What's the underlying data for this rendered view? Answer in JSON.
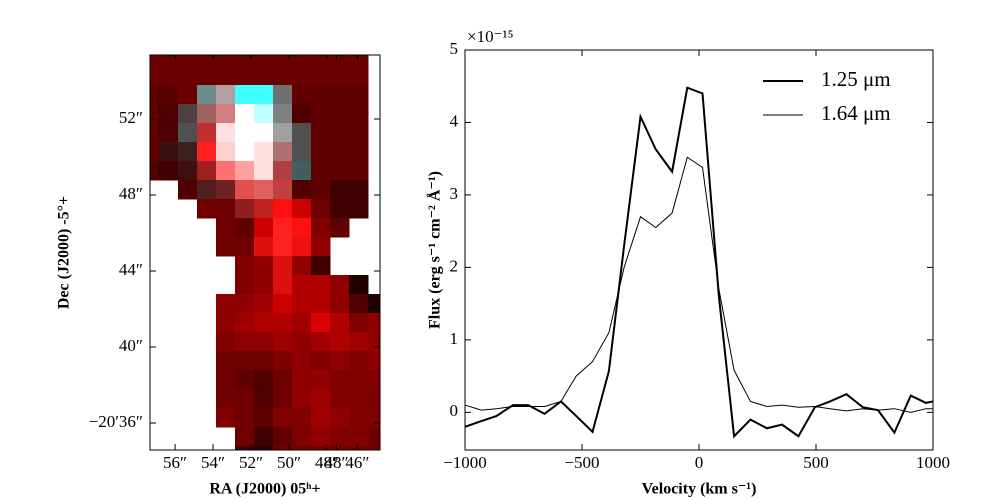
{
  "chart_data": [
    {
      "type": "image",
      "xlabel": "RA (J2000) 05ʰ+",
      "ylabel": "Dec (J2000) -5°+",
      "xlim": [
        57.32,
        45.21
      ],
      "ylim": [
        34.58,
        55.37
      ],
      "xticks": [
        {
          "value": 56,
          "label": "56″"
        },
        {
          "value": 54,
          "label": "54″"
        },
        {
          "value": 52,
          "label": "52″"
        },
        {
          "value": 50,
          "label": "50″"
        },
        {
          "value": 48,
          "label": "48″"
        },
        {
          "value": 47.5,
          "label": "48″"
        },
        {
          "value": 46.4,
          "label": "46″"
        }
      ],
      "yticks": [
        {
          "value": 36,
          "label": "−20′36″"
        },
        {
          "value": 40,
          "label": "40″"
        },
        {
          "value": 44,
          "label": "44″"
        },
        {
          "value": 48,
          "label": "48″"
        },
        {
          "value": 52,
          "label": "52″"
        }
      ],
      "pixels": [
        [
          "#6a0000",
          "#6a0000",
          "#6a0000",
          "#6a0000",
          "#6a0000",
          "#6a0000",
          "#6a0000",
          "#6a0000",
          "#6a0000",
          "#6a0000",
          "#6a0000",
          "#6a0000",
          null
        ],
        [
          "#6b0000",
          "#6b0000",
          "#6b0000",
          "#6b0000",
          "#6b0000",
          "#6b0000",
          "#6b0000",
          "#6b0000",
          "#6b0000",
          "#6b0000",
          "#6b0000",
          "#6b0000",
          null
        ],
        [
          "#5a0000",
          "#5a0000",
          "#6b0000",
          "#6f8c8c",
          "#b0a0a0",
          "#40ffff",
          "#40ffff",
          "#707070",
          "#600000",
          "#600000",
          "#600000",
          "#600000",
          null
        ],
        [
          "#600000",
          "#500000",
          "#504040",
          "#a06060",
          "#d08080",
          "#ffffff",
          "#c0ffff",
          "#808080",
          "#500000",
          "#600000",
          "#600000",
          "#600000",
          null
        ],
        [
          "#600000",
          "#500000",
          "#505050",
          "#c03030",
          "#ffe0e0",
          "#ffffff",
          "#ffffff",
          "#a0a0a0",
          "#505050",
          "#600000",
          "#600000",
          "#600000",
          null
        ],
        [
          "#600000",
          "#3a1010",
          "#3a2020",
          "#ff2020",
          "#ffd0d0",
          "#ffffff",
          "#ffe0e0",
          "#b07070",
          "#505050",
          "#600000",
          "#600000",
          "#600000",
          null
        ],
        [
          "#500000",
          "#400000",
          "#401010",
          "#a02020",
          "#ff7070",
          "#ffa0a0",
          "#ffe0e0",
          "#b04040",
          "#406060",
          "#600000",
          "#600000",
          "#600000",
          null
        ],
        [
          null,
          null,
          "#500000",
          "#502020",
          "#702020",
          "#e05050",
          "#e06060",
          "#c04040",
          "#500000",
          "#600000",
          "#400000",
          "#400000",
          null
        ],
        [
          null,
          null,
          null,
          "#700000",
          "#700000",
          "#902020",
          "#c02020",
          "#ff1010",
          "#cc0000",
          "#700000",
          "#400000",
          "#400000",
          null
        ],
        [
          null,
          null,
          null,
          null,
          "#700000",
          "#600000",
          "#cc0000",
          "#ff2020",
          "#ff1010",
          "#800000",
          "#600000",
          null,
          null
        ],
        [
          null,
          null,
          null,
          null,
          "#700000",
          "#700000",
          "#dd1010",
          "#ff2020",
          "#ee1010",
          "#900000",
          null,
          null,
          null
        ],
        [
          null,
          null,
          null,
          null,
          null,
          "#800000",
          "#900000",
          "#dd1010",
          "#900000",
          "#400000",
          null,
          null,
          null
        ],
        [
          null,
          null,
          null,
          null,
          null,
          "#800000",
          "#900000",
          "#dd1010",
          "#b00000",
          "#b00000",
          "#900000",
          "#200000",
          null
        ],
        [
          null,
          null,
          null,
          null,
          "#900000",
          "#900000",
          "#a00000",
          "#cc0000",
          "#b00000",
          "#b00000",
          "#900000",
          "#500000",
          "#200000"
        ],
        [
          null,
          null,
          null,
          null,
          "#900000",
          "#a00000",
          "#b00000",
          "#b00000",
          "#a00000",
          "#dd0000",
          "#b00000",
          "#800000",
          "#900000"
        ],
        [
          null,
          null,
          null,
          null,
          "#800000",
          "#900000",
          "#900000",
          "#a00000",
          "#900000",
          "#a00000",
          "#b00000",
          "#a00000",
          "#900000"
        ],
        [
          null,
          null,
          null,
          null,
          "#700000",
          "#700000",
          "#700000",
          "#800000",
          "#900000",
          "#800000",
          "#900000",
          "#800000",
          "#900000"
        ],
        [
          null,
          null,
          null,
          null,
          "#700000",
          "#600000",
          "#500000",
          "#700000",
          "#900000",
          "#900000",
          "#800000",
          "#800000",
          "#800000"
        ],
        [
          null,
          null,
          null,
          null,
          "#700000",
          "#700000",
          "#500000",
          "#700000",
          "#900000",
          "#a00000",
          "#800000",
          "#800000",
          "#800000"
        ],
        [
          null,
          null,
          null,
          null,
          "#800000",
          "#700000",
          "#600000",
          "#800000",
          "#800000",
          "#a00000",
          "#900000",
          "#800000",
          "#800000"
        ],
        [
          null,
          null,
          null,
          null,
          null,
          "#700000",
          "#400000",
          "#600000",
          "#800000",
          "#900000",
          "#800000",
          "#800000",
          "#700000"
        ],
        [
          null,
          null,
          null,
          null,
          null,
          "#400000",
          "#300000",
          "#700000",
          "#700000",
          "#700000",
          "#700000",
          "#700000",
          "#700000"
        ]
      ]
    },
    {
      "type": "line",
      "xlabel": "Velocity (km s⁻¹)",
      "ylabel": "Flux (erg s⁻¹ cm⁻² Å⁻¹)",
      "multiplier": "×10⁻¹⁵",
      "xlim": [
        -1000,
        1000
      ],
      "ylim": [
        -0.52,
        5
      ],
      "xticks": [
        {
          "value": -1000,
          "label": "−1000"
        },
        {
          "value": -500,
          "label": "−500"
        },
        0,
        500,
        1000
      ],
      "yticks": [
        0,
        1,
        2,
        3,
        4,
        5
      ],
      "legend": "upper right",
      "x": [
        -1000,
        -930,
        -865,
        -795,
        -730,
        -660,
        -590,
        -525,
        -455,
        -385,
        -320,
        -250,
        -185,
        -115,
        -50,
        15,
        85,
        150,
        220,
        290,
        355,
        425,
        495,
        560,
        630,
        700,
        765,
        835,
        905,
        970,
        1000
      ],
      "series": [
        {
          "name": "1.25 μm",
          "color": "#000000",
          "linewidth": 2,
          "values": [
            -0.2,
            -0.12,
            -0.05,
            0.1,
            0.1,
            -0.02,
            0.15,
            -0.05,
            -0.27,
            0.57,
            2.3,
            4.08,
            3.63,
            3.32,
            4.48,
            4.4,
            1.6,
            -0.33,
            -0.1,
            -0.22,
            -0.17,
            -0.33,
            0.07,
            0.15,
            0.25,
            0.07,
            0.03,
            -0.28,
            0.23,
            0.13,
            0.15
          ]
        },
        {
          "name": "1.64 μm",
          "color": "#000000",
          "linewidth": 1,
          "values": [
            0.1,
            0.03,
            0.05,
            0.08,
            0.08,
            0.08,
            0.15,
            0.5,
            0.7,
            1.1,
            2.0,
            2.7,
            2.55,
            2.75,
            3.52,
            3.38,
            1.7,
            0.58,
            0.15,
            0.08,
            0.1,
            0.07,
            0.08,
            0.05,
            0.02,
            0.05,
            0.03,
            0.05,
            0.0,
            0.05,
            0.05
          ]
        }
      ]
    }
  ]
}
